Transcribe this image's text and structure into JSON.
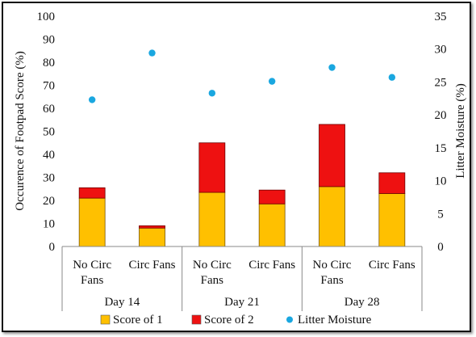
{
  "chart_data": {
    "type": "bar",
    "subtype": "stacked-bar-with-secondary-scatter",
    "categories": [
      {
        "lines": [
          "No Circ",
          "Fans"
        ]
      },
      {
        "lines": [
          "Circ Fans"
        ]
      },
      {
        "lines": [
          "No Circ",
          "Fans"
        ]
      },
      {
        "lines": [
          "Circ Fans"
        ]
      },
      {
        "lines": [
          "No Circ",
          "Fans"
        ]
      },
      {
        "lines": [
          "Circ Fans"
        ]
      }
    ],
    "groups": [
      {
        "label": "Day 14",
        "span": 2
      },
      {
        "label": "Day 21",
        "span": 2
      },
      {
        "label": "Day 28",
        "span": 2
      }
    ],
    "series": [
      {
        "name": "Score of 1",
        "type": "bar",
        "axis": "left",
        "color": "#FFC000",
        "values": [
          21,
          8,
          23.5,
          18.5,
          26,
          23
        ]
      },
      {
        "name": "Score of 2",
        "type": "bar",
        "axis": "left",
        "color": "#EE1111",
        "values": [
          4.5,
          1,
          21.5,
          6,
          27,
          9
        ]
      },
      {
        "name": "Litter Moisture",
        "type": "scatter",
        "axis": "right",
        "color": "#1AA7E0",
        "values": [
          22.3,
          29.4,
          23.3,
          25.1,
          27.2,
          25.7
        ]
      }
    ],
    "ylabel": "Occurence of Footpad Score (%)",
    "y2label": "Litter Moisture (%)",
    "ylim": [
      0,
      100
    ],
    "y2lim": [
      0,
      35
    ],
    "yticks": [
      "0",
      "10",
      "20",
      "30",
      "40",
      "50",
      "60",
      "70",
      "80",
      "90",
      "100"
    ],
    "y2ticks": [
      "0",
      "5",
      "10",
      "15",
      "20",
      "25",
      "30",
      "35"
    ],
    "grid": false,
    "legend_position": "bottom"
  }
}
